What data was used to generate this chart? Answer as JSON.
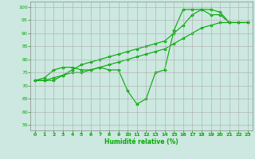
{
  "xlabel": "Humidité relative (%)",
  "background_color": "#cce8e0",
  "grid_color": "#aaaaaa",
  "line_color": "#00aa00",
  "xlim": [
    -0.5,
    23.5
  ],
  "ylim": [
    53,
    102
  ],
  "yticks": [
    55,
    60,
    65,
    70,
    75,
    80,
    85,
    90,
    95,
    100
  ],
  "xticks": [
    0,
    1,
    2,
    3,
    4,
    5,
    6,
    7,
    8,
    9,
    10,
    11,
    12,
    13,
    14,
    15,
    16,
    17,
    18,
    19,
    20,
    21,
    22,
    23
  ],
  "series": [
    {
      "x": [
        0,
        1,
        2,
        3,
        4,
        5,
        6,
        7,
        8,
        9,
        10,
        11,
        12,
        13,
        14,
        15,
        16,
        17,
        18,
        19,
        20,
        21,
        22,
        23
      ],
      "y": [
        72,
        73,
        76,
        77,
        77,
        76,
        76,
        77,
        76,
        76,
        68,
        63,
        65,
        75,
        76,
        91,
        99,
        99,
        99,
        97,
        97,
        94,
        94,
        94
      ]
    },
    {
      "x": [
        0,
        1,
        2,
        3,
        4,
        5,
        6,
        7,
        8,
        9,
        10,
        11,
        12,
        13,
        14,
        15,
        16,
        17,
        18,
        19,
        20,
        21,
        22,
        23
      ],
      "y": [
        72,
        72,
        72,
        74,
        76,
        78,
        79,
        80,
        81,
        82,
        83,
        84,
        85,
        86,
        87,
        90,
        93,
        97,
        99,
        99,
        98,
        94,
        94,
        94
      ]
    },
    {
      "x": [
        0,
        1,
        2,
        3,
        4,
        5,
        6,
        7,
        8,
        9,
        10,
        11,
        12,
        13,
        14,
        15,
        16,
        17,
        18,
        19,
        20,
        21,
        22,
        23
      ],
      "y": [
        72,
        72,
        73,
        74,
        75,
        75,
        76,
        77,
        78,
        79,
        80,
        81,
        82,
        83,
        84,
        86,
        88,
        90,
        92,
        93,
        94,
        94,
        94,
        94
      ]
    }
  ]
}
